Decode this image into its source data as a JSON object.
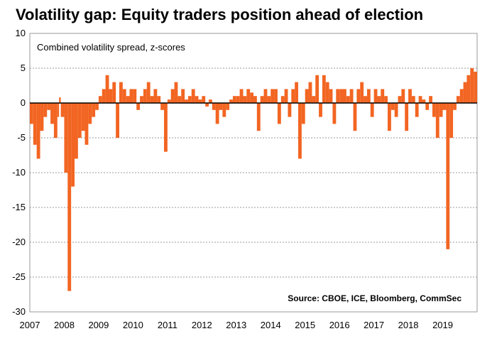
{
  "chart_data": {
    "type": "bar",
    "title": "Volatility gap: Equity traders position ahead of election",
    "subtitle": "Combined volatility spread, z-scores",
    "source": "Source: CBOE, ICE, Bloomberg, CommSec",
    "xlabel": "",
    "ylabel": "",
    "xlim": [
      2007.0,
      2020.0
    ],
    "ylim": [
      -30,
      10
    ],
    "y_ticks": [
      10,
      5,
      0,
      -5,
      -10,
      -15,
      -20,
      -25,
      -30
    ],
    "x_ticks": [
      "2007",
      "2008",
      "2009",
      "2010",
      "2011",
      "2012",
      "2013",
      "2014",
      "2015",
      "2016",
      "2017",
      "2018",
      "2019"
    ],
    "grid": true,
    "legend": "none",
    "colors": {
      "series": "#f26522",
      "zero_line": "#000000",
      "grid": "#9a9a9a"
    },
    "series": [
      {
        "x": [
          2007.0,
          2007.1,
          2007.2,
          2007.3,
          2007.4,
          2007.5,
          2007.6,
          2007.7,
          2007.8,
          2007.85,
          2007.9,
          2008.0,
          2008.1,
          2008.2,
          2008.3,
          2008.4,
          2008.5,
          2008.6,
          2008.7,
          2008.8,
          2008.9,
          2009.0,
          2009.1,
          2009.2,
          2009.3,
          2009.4,
          2009.5,
          2009.6,
          2009.7,
          2009.8,
          2009.9,
          2010.0,
          2010.1,
          2010.2,
          2010.3,
          2010.4,
          2010.5,
          2010.6,
          2010.7,
          2010.8,
          2010.9,
          2011.0,
          2011.1,
          2011.2,
          2011.3,
          2011.4,
          2011.5,
          2011.6,
          2011.7,
          2011.8,
          2011.9,
          2012.0,
          2012.1,
          2012.2,
          2012.3,
          2012.4,
          2012.5,
          2012.6,
          2012.7,
          2012.8,
          2012.9,
          2013.0,
          2013.1,
          2013.2,
          2013.3,
          2013.4,
          2013.5,
          2013.6,
          2013.7,
          2013.8,
          2013.9,
          2014.0,
          2014.1,
          2014.2,
          2014.3,
          2014.4,
          2014.5,
          2014.6,
          2014.7,
          2014.8,
          2014.9,
          2015.0,
          2015.1,
          2015.2,
          2015.3,
          2015.4,
          2015.5,
          2015.6,
          2015.7,
          2015.8,
          2015.9,
          2016.0,
          2016.1,
          2016.2,
          2016.3,
          2016.4,
          2016.5,
          2016.6,
          2016.7,
          2016.8,
          2016.9,
          2017.0,
          2017.1,
          2017.2,
          2017.3,
          2017.4,
          2017.5,
          2017.6,
          2017.7,
          2017.8,
          2017.9,
          2018.0,
          2018.1,
          2018.2,
          2018.3,
          2018.4,
          2018.5,
          2018.6,
          2018.7,
          2018.8,
          2018.9,
          2019.0,
          2019.1,
          2019.2,
          2019.3,
          2019.4,
          2019.5,
          2019.6,
          2019.7,
          2019.8,
          2019.9
        ],
        "values": [
          -3,
          -6,
          -8,
          -4,
          -2,
          -1,
          -3,
          -5,
          -2,
          0.8,
          -2,
          -10,
          -27,
          -12,
          -8,
          -5,
          -4,
          -6,
          -3,
          -2,
          -1,
          1,
          2,
          4,
          2,
          3,
          -5,
          3,
          2,
          1,
          2,
          2,
          -1,
          1,
          2,
          3,
          1,
          2,
          1,
          -1,
          -7,
          0.5,
          2,
          3,
          1,
          2,
          0.5,
          1,
          2,
          1,
          0.5,
          1,
          -0.5,
          0.5,
          -1,
          -3,
          -1,
          -2,
          -1,
          0.5,
          1,
          1,
          2,
          1,
          2,
          1.5,
          1,
          -4,
          1,
          2,
          1,
          2,
          2,
          -3,
          1,
          2,
          -2,
          2,
          3,
          -8,
          -3,
          2,
          3,
          1,
          4,
          -2,
          4,
          3,
          2,
          -3,
          2,
          2,
          2,
          1,
          2,
          -4,
          2,
          3,
          1,
          2,
          -2,
          2,
          1,
          2,
          1,
          -4,
          -1,
          -2,
          1,
          2,
          -4,
          2,
          1,
          -2,
          1,
          0.5,
          -1,
          1,
          -2,
          -5,
          -2,
          -1,
          -21,
          -5,
          -1,
          1,
          2,
          3,
          4,
          5,
          4.5
        ]
      }
    ]
  }
}
